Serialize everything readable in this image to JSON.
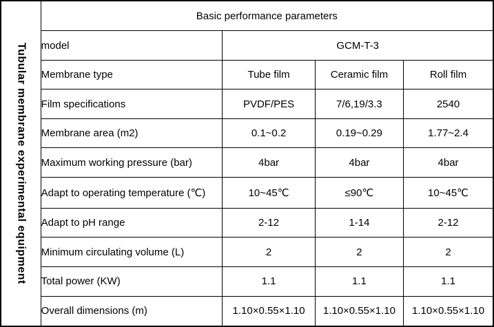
{
  "colors": {
    "border": "#000000",
    "text": "#000000",
    "background": "#ffffff"
  },
  "side_header": "Tubular membrane experimental equipment",
  "table": {
    "title": "Basic performance parameters",
    "model_row": {
      "label": "model",
      "value": "GCM-T-3"
    },
    "rows": [
      {
        "label": "Membrane type",
        "values": [
          "Tube film",
          "Ceramic film",
          "Roll film"
        ]
      },
      {
        "label": "Film specifications",
        "values": [
          "PVDF/PES",
          "7/6,19/3.3",
          "2540"
        ]
      },
      {
        "label": "Membrane area (m2)",
        "values": [
          "0.1~0.2",
          "0.19~0.29",
          "1.77~2.4"
        ]
      },
      {
        "label": "Maximum working pressure (bar)",
        "values": [
          "4bar",
          "4bar",
          "4bar"
        ]
      },
      {
        "label": "Adapt to operating temperature (℃)",
        "values": [
          "10~45℃",
          "≤90℃",
          "10~45℃"
        ]
      },
      {
        "label": "Adapt to pH range",
        "values": [
          "2-12",
          "1-14",
          "2-12"
        ]
      },
      {
        "label": "Minimum circulating volume (L)",
        "values": [
          "2",
          "2",
          "2"
        ]
      },
      {
        "label": "Total power (KW)",
        "values": [
          "1.1",
          "1.1",
          "1.1"
        ]
      },
      {
        "label": "Overall dimensions (m)",
        "values": [
          "1.10×0.55×1.10",
          "1.10×0.55×1.10",
          "1.10×0.55×1.10"
        ]
      }
    ]
  }
}
